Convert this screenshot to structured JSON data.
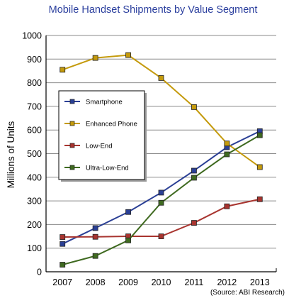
{
  "chart_data": {
    "type": "line",
    "title": "Mobile Handset Shipments by Value Segment",
    "xlabel": "",
    "ylabel": "Millions of Units",
    "x": [
      "2007",
      "2008",
      "2009",
      "2010",
      "2011",
      "2012",
      "2013"
    ],
    "ylim": [
      0,
      1000
    ],
    "yticks": [
      0,
      100,
      200,
      300,
      400,
      500,
      600,
      700,
      800,
      900,
      1000
    ],
    "grid": true,
    "legend_position": "upper-left inside plot",
    "series": [
      {
        "name": "Smartphone",
        "color": "#2a3f95",
        "values": [
          118,
          185,
          253,
          335,
          428,
          527,
          595
        ]
      },
      {
        "name": "Enhanced Phone",
        "color": "#c49a0c",
        "values": [
          855,
          905,
          917,
          820,
          697,
          543,
          443
        ]
      },
      {
        "name": "Low-End",
        "color": "#a8342f",
        "values": [
          147,
          148,
          150,
          150,
          207,
          277,
          307
        ]
      },
      {
        "name": "Ultra-Low-End",
        "color": "#3f6a20",
        "values": [
          30,
          67,
          133,
          292,
          398,
          497,
          578
        ]
      }
    ],
    "source": "(Source: ABI Research)"
  }
}
